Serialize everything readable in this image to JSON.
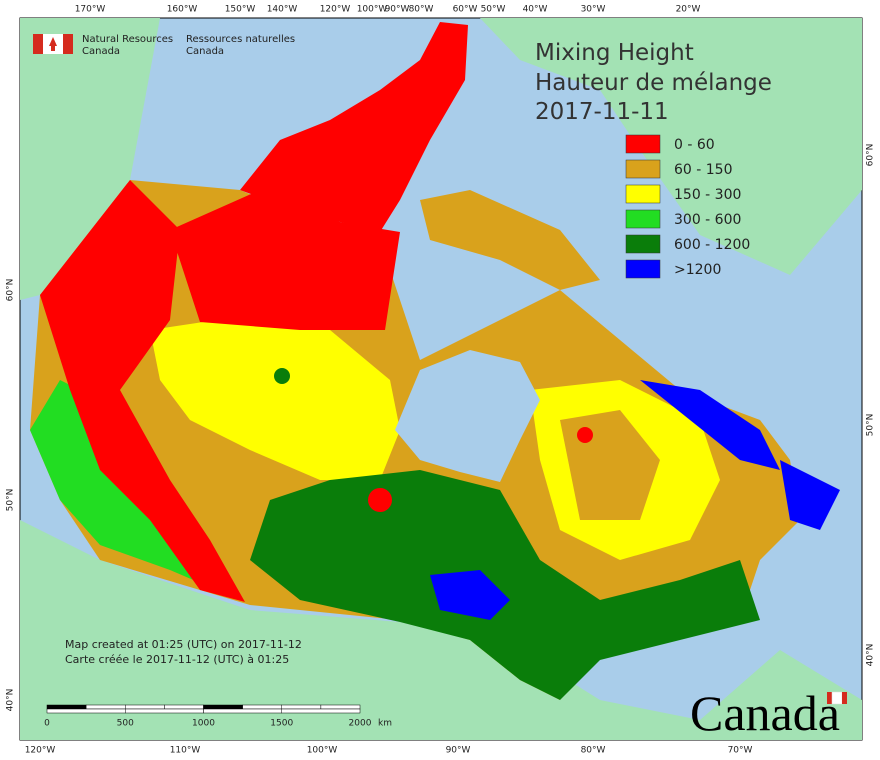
{
  "header": {
    "org_en": [
      "Natural Resources",
      "Canada"
    ],
    "org_fr": [
      "Ressources naturelles",
      "Canada"
    ]
  },
  "title": [
    "Mixing Height",
    "Hauteur de mélange",
    "2017-11-11"
  ],
  "legend": [
    {
      "label": "0 - 60",
      "color": "#ff0000"
    },
    {
      "label": "60 - 150",
      "color": "#d9a21c"
    },
    {
      "label": "150 - 300",
      "color": "#ffff00"
    },
    {
      "label": "300 - 600",
      "color": "#22dd22"
    },
    {
      "label": "600 - 1200",
      "color": "#0a7d0a"
    },
    {
      "label": ">1200",
      "color": "#0000ff"
    }
  ],
  "top_ticks": [
    "170°W",
    "160°W",
    "150°W",
    "140°W",
    "120°W",
    "100°W",
    "90°W",
    "80°W",
    "60°W",
    "50°W",
    "40°W",
    "30°W",
    "20°W"
  ],
  "bottom_ticks": [
    "120°W",
    "110°W",
    "100°W",
    "90°W",
    "80°W",
    "70°W"
  ],
  "left_ticks": [
    "60°N",
    "50°N",
    "40°N"
  ],
  "right_ticks": [
    "60°N",
    "50°N",
    "40°N"
  ],
  "footer_notes": [
    "Map created at 01:25 (UTC) on 2017-11-12",
    "Carte créée le 2017-11-12 (UTC) à 01:25"
  ],
  "scale_bar": {
    "labels": [
      "0",
      "500",
      "1000",
      "1500",
      "2000"
    ],
    "unit": "km"
  },
  "wordmark": "Canada"
}
